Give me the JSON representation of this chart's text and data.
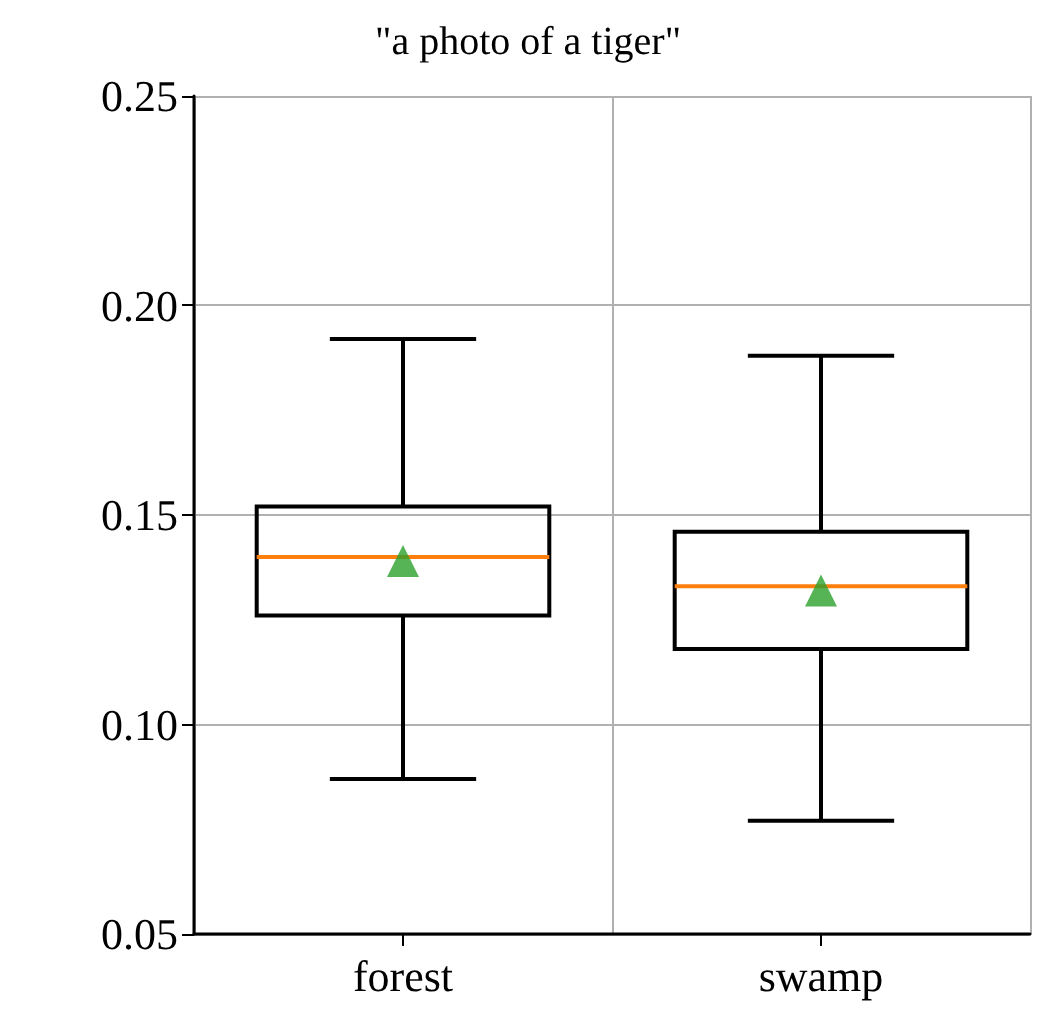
{
  "chart_data": {
    "type": "box",
    "title": "\"a photo of a tiger\"",
    "categories": [
      "forest",
      "swamp"
    ],
    "boxes": [
      {
        "low": 0.087,
        "q1": 0.126,
        "median": 0.14,
        "q3": 0.152,
        "high": 0.192,
        "mean": 0.139
      },
      {
        "low": 0.077,
        "q1": 0.118,
        "median": 0.133,
        "q3": 0.146,
        "high": 0.188,
        "mean": 0.132
      }
    ],
    "ylim": [
      0.05,
      0.25
    ],
    "yticks": [
      0.05,
      {
        "value": 0.1,
        "label": "0.10"
      },
      0.15,
      {
        "value": 0.2,
        "label": "0.20"
      },
      0.25
    ],
    "grid": true,
    "marker": "triangle"
  }
}
